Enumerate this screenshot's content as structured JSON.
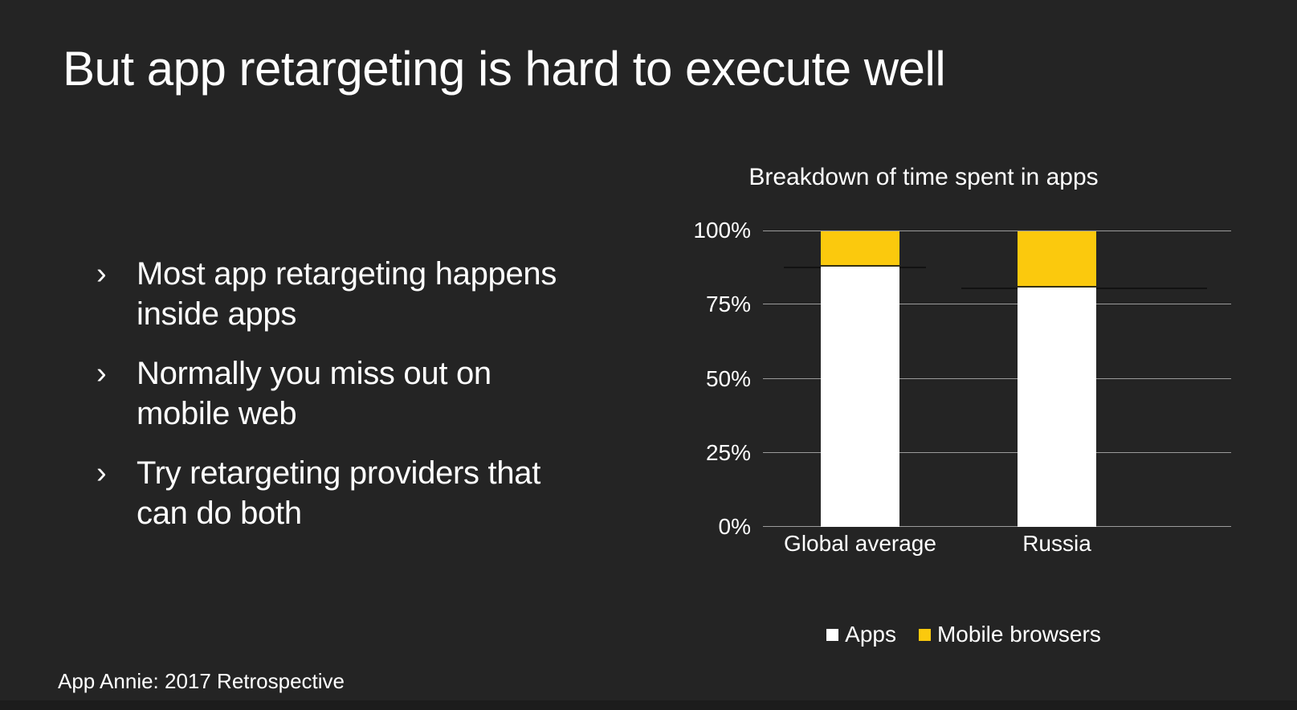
{
  "slide": {
    "title": "But app retargeting is hard to execute well",
    "bullet_marker": "›",
    "bullets": [
      "Most app retargeting happens\ninside apps",
      "Normally you miss out on\nmobile web",
      "Try retargeting providers that\ncan do both"
    ],
    "source_note": "App Annie: 2017 Retrospective"
  },
  "colors": {
    "background": "#242424",
    "text": "#FFFFFF",
    "accent_yellow": "#FBC90D",
    "bar_white": "#FFFFFF",
    "gridline": "#9B9B9B"
  },
  "chart_data": {
    "type": "bar",
    "stacked": true,
    "title": "Breakdown of time spent in apps",
    "categories": [
      "Global average",
      "Russia"
    ],
    "series": [
      {
        "name": "Apps",
        "color": "#FFFFFF",
        "values": [
          88,
          81
        ]
      },
      {
        "name": "Mobile browsers",
        "color": "#FBC90D",
        "values": [
          12,
          19
        ]
      }
    ],
    "y_ticks": [
      "100%",
      "75%",
      "50%",
      "25%",
      "0%"
    ],
    "ylim": [
      0,
      100
    ],
    "grid": true,
    "legend_position": "bottom"
  }
}
